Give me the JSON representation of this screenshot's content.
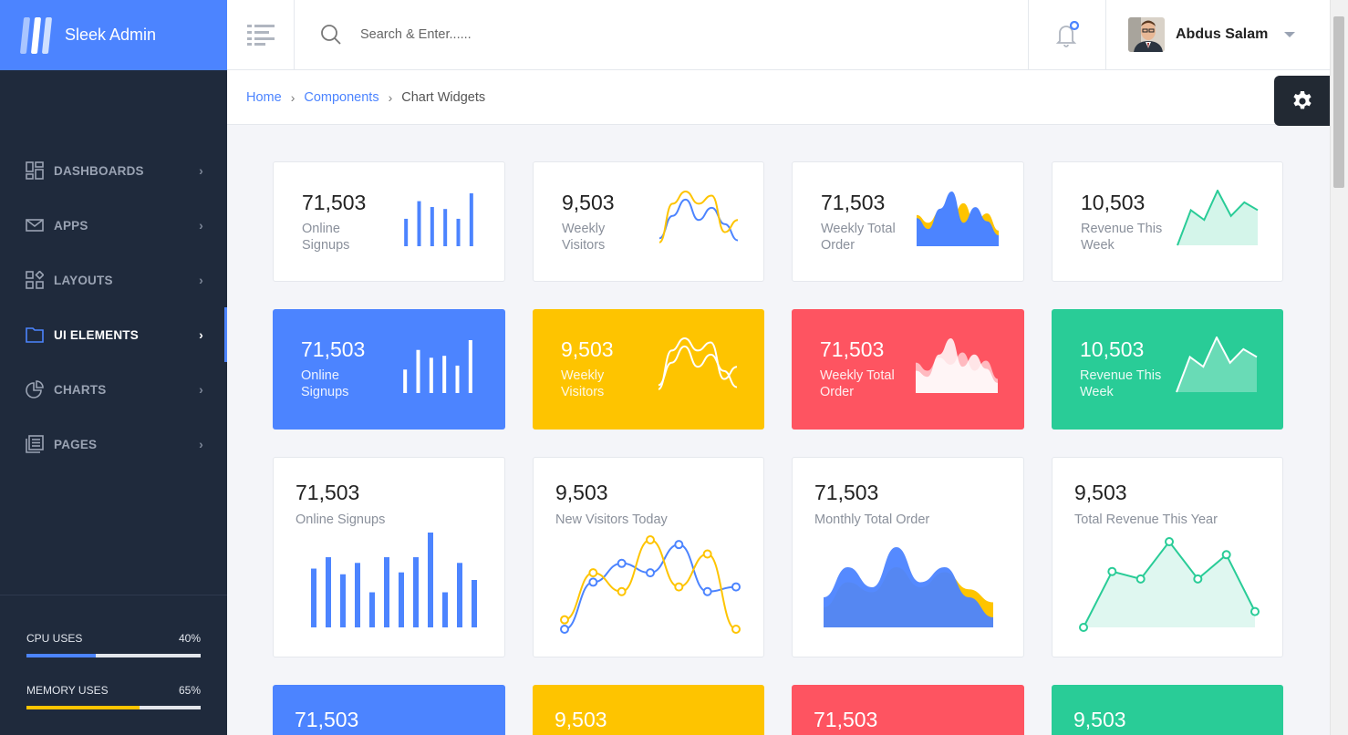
{
  "brand": {
    "title": "Sleek Admin",
    "logo_colors": [
      "#a9c5ff",
      "#ffffff",
      "#cfe0ff"
    ]
  },
  "nav": [
    {
      "label": "DASHBOARDS",
      "icon": "dashboard-icon"
    },
    {
      "label": "APPS",
      "icon": "mail-icon"
    },
    {
      "label": "LAYOUTS",
      "icon": "layouts-icon"
    },
    {
      "label": "UI ELEMENTS",
      "icon": "folder-icon",
      "active": true
    },
    {
      "label": "CHARTS",
      "icon": "pie-chart-icon"
    },
    {
      "label": "PAGES",
      "icon": "pages-icon"
    }
  ],
  "usage": {
    "cpu": {
      "label": "CPU USES",
      "value": "40%",
      "fraction": 0.4,
      "color": "#4c84ff"
    },
    "memory": {
      "label": "MEMORY USES",
      "value": "65%",
      "fraction": 0.65,
      "color": "#fec400"
    }
  },
  "search": {
    "placeholder": "Search & Enter......"
  },
  "user": {
    "name": "Abdus Salam"
  },
  "breadcrumb": {
    "home": "Home",
    "components": "Components",
    "current": "Chart Widgets"
  },
  "colors": {
    "primary": "#4c84ff",
    "yellow": "#fec400",
    "red": "#fe5461",
    "green": "#29cc97",
    "sidebar": "#1f2a3c"
  },
  "cards": {
    "row1": [
      {
        "value": "71,503",
        "label": "Online Signups",
        "chart": "bar",
        "data": [
          28,
          46,
          40,
          38,
          28,
          54
        ]
      },
      {
        "value": "9,503",
        "label": "Weekly Visitors",
        "chart": "line",
        "series": [
          [
            3,
            14,
            22,
            12,
            18,
            10,
            2
          ],
          [
            1,
            20,
            26,
            20,
            24,
            6,
            12
          ]
        ]
      },
      {
        "value": "71,503",
        "label": "Weekly Total Order",
        "chart": "area",
        "series": [
          [
            40,
            30,
            45,
            38,
            55,
            30,
            42,
            20
          ],
          [
            36,
            22,
            48,
            70,
            30,
            50,
            32,
            14
          ]
        ]
      },
      {
        "value": "10,503",
        "label": "Revenue This Week",
        "chart": "area-line",
        "data": [
          0,
          36,
          26,
          56,
          30,
          44,
          36
        ]
      }
    ],
    "row2": [
      {
        "value": "71,503",
        "label": "Online Signups",
        "chart": "bar",
        "data": [
          24,
          44,
          36,
          38,
          28,
          54
        ]
      },
      {
        "value": "9,503",
        "label": "Weekly Visitors",
        "chart": "line",
        "series": [
          [
            3,
            14,
            22,
            12,
            18,
            10,
            2
          ],
          [
            1,
            20,
            26,
            20,
            24,
            6,
            12
          ]
        ]
      },
      {
        "value": "71,503",
        "label": "Weekly Total Order",
        "chart": "area",
        "series": [
          [
            30,
            22,
            35,
            28,
            40,
            22,
            32,
            14
          ],
          [
            22,
            16,
            38,
            54,
            26,
            38,
            24,
            10
          ]
        ]
      },
      {
        "value": "10,503",
        "label": "Revenue This Week",
        "chart": "area-line",
        "data": [
          0,
          36,
          26,
          56,
          30,
          44,
          36
        ]
      }
    ],
    "row3": [
      {
        "value": "71,503",
        "label": "Online Signups",
        "chart": "bar",
        "data": [
          62,
          74,
          56,
          68,
          37,
          74,
          58,
          74,
          100,
          37,
          68,
          50
        ]
      },
      {
        "value": "9,503",
        "label": "New Visitors Today",
        "chart": "line",
        "series": [
          [
            0,
            50,
            70,
            60,
            90,
            40,
            45
          ],
          [
            10,
            60,
            40,
            95,
            45,
            80,
            0
          ]
        ]
      },
      {
        "value": "71,503",
        "label": "Monthly Total Order",
        "chart": "area",
        "series": [
          [
            20,
            45,
            35,
            60,
            40,
            55,
            38,
            25
          ],
          [
            30,
            60,
            40,
            80,
            45,
            60,
            30,
            10
          ]
        ]
      },
      {
        "value": "9,503",
        "label": "Total Revenue This Year",
        "chart": "area-line",
        "data": [
          0,
          60,
          52,
          92,
          52,
          78,
          17
        ]
      }
    ],
    "row4": [
      {
        "value": "71,503"
      },
      {
        "value": "9,503"
      },
      {
        "value": "71,503"
      },
      {
        "value": "9,503"
      }
    ]
  }
}
